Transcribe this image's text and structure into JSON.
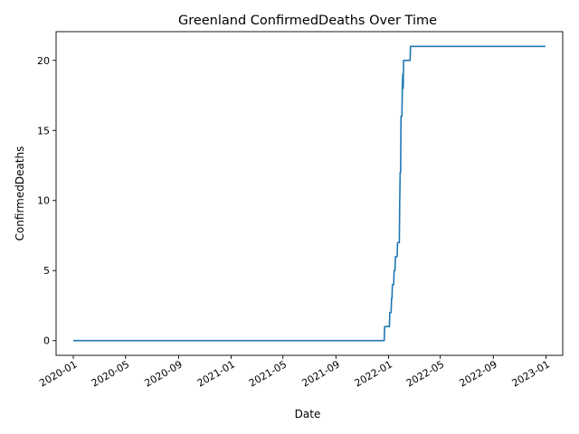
{
  "chart_data": {
    "type": "line",
    "title": "Greenland  ConfirmedDeaths Over Time",
    "xlabel": "Date",
    "ylabel": "ConfirmedDeaths",
    "x_type": "date",
    "xlim": [
      "2019-11-22",
      "2023-02-09"
    ],
    "ylim": [
      -1.05,
      22.05
    ],
    "grid": false,
    "xticks": [
      "2020-01",
      "2020-05",
      "2020-09",
      "2021-01",
      "2021-05",
      "2021-09",
      "2022-01",
      "2022-05",
      "2022-09",
      "2023-01"
    ],
    "yticks": [
      0,
      5,
      10,
      15,
      20
    ],
    "line_color": "#1f77b4",
    "series": [
      {
        "points": [
          [
            "2020-01-01",
            0
          ],
          [
            "2021-12-22",
            0
          ],
          [
            "2021-12-23",
            1
          ],
          [
            "2022-01-03",
            1
          ],
          [
            "2022-01-04",
            2
          ],
          [
            "2022-01-07",
            2
          ],
          [
            "2022-01-08",
            3
          ],
          [
            "2022-01-09",
            3
          ],
          [
            "2022-01-10",
            4
          ],
          [
            "2022-01-13",
            4
          ],
          [
            "2022-01-14",
            5
          ],
          [
            "2022-01-16",
            5
          ],
          [
            "2022-01-17",
            6
          ],
          [
            "2022-01-21",
            6
          ],
          [
            "2022-01-22",
            7
          ],
          [
            "2022-01-26",
            7
          ],
          [
            "2022-01-27",
            10
          ],
          [
            "2022-01-28",
            12
          ],
          [
            "2022-01-29",
            12
          ],
          [
            "2022-01-30",
            16
          ],
          [
            "2022-02-01",
            16
          ],
          [
            "2022-02-02",
            18
          ],
          [
            "2022-02-03",
            19
          ],
          [
            "2022-02-04",
            18
          ],
          [
            "2022-02-05",
            20
          ],
          [
            "2022-02-20",
            20
          ],
          [
            "2022-02-21",
            21
          ],
          [
            "2022-12-31",
            21
          ]
        ]
      }
    ]
  }
}
